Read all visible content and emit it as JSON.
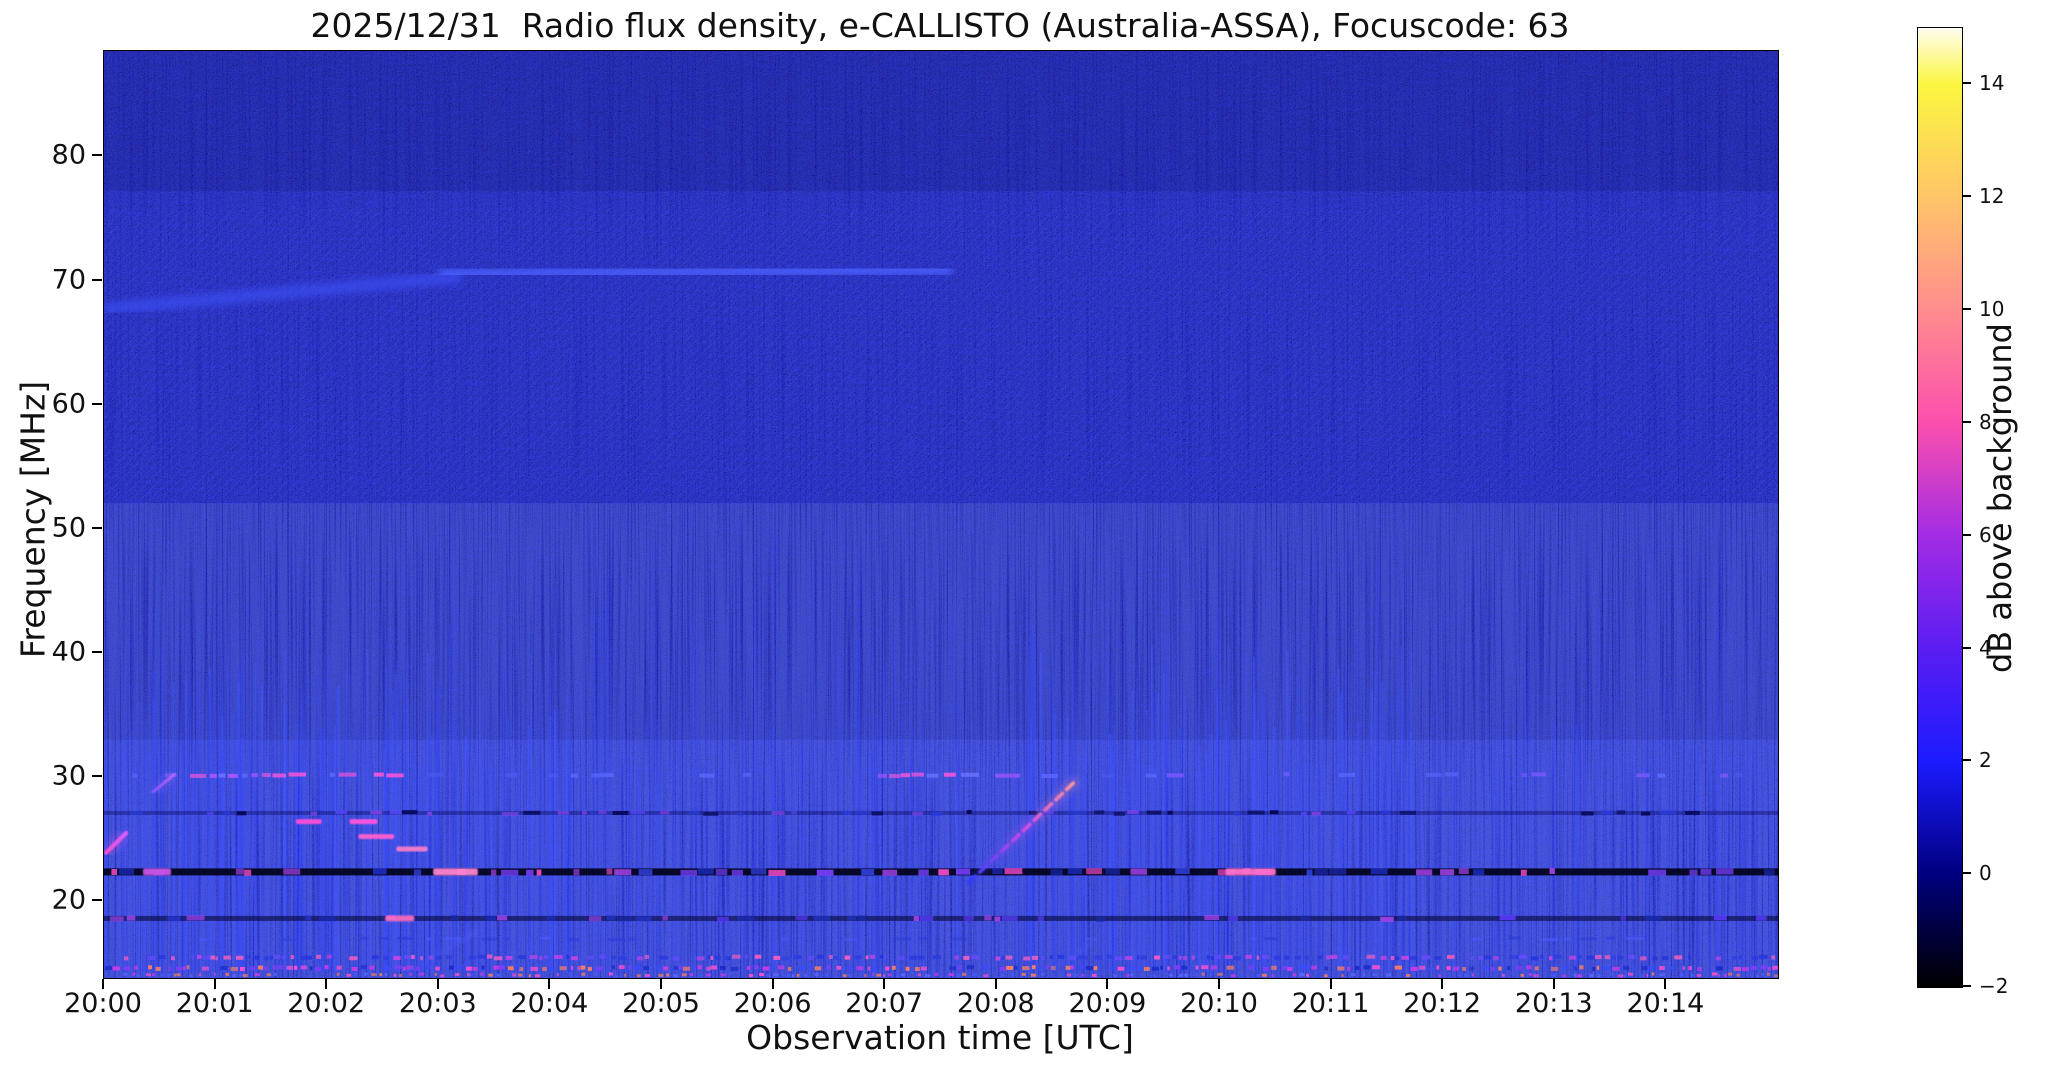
{
  "title": "2025/12/31  Radio flux density, e-CALLISTO (Australia-ASSA), Focuscode: 63",
  "chart_data": {
    "type": "heatmap",
    "subtype": "radio-spectrogram",
    "title": "2025/12/31  Radio flux density, e-CALLISTO (Australia-ASSA), Focuscode: 63",
    "xlabel": "Observation time [UTC]",
    "ylabel": "Frequency [MHz]",
    "colorbar_label": "dB above background",
    "x_tick_labels": [
      "20:00",
      "20:01",
      "20:02",
      "20:03",
      "20:04",
      "20:05",
      "20:06",
      "20:07",
      "20:08",
      "20:09",
      "20:10",
      "20:11",
      "20:12",
      "20:13",
      "20:14"
    ],
    "x_tick_minutes": [
      0,
      1,
      2,
      3,
      4,
      5,
      6,
      7,
      8,
      9,
      10,
      11,
      12,
      13,
      14
    ],
    "x_range_minutes": [
      0,
      15
    ],
    "x_start_time": "20:00",
    "y_tick_values": [
      80,
      70,
      60,
      50,
      40,
      30,
      20
    ],
    "y_range_mhz": [
      13.8,
      88.5
    ],
    "grid": false,
    "colorbar_tick_values": [
      14,
      12,
      10,
      8,
      6,
      4,
      2,
      0,
      -2
    ],
    "colorbar_tick_labels": [
      "14",
      "12",
      "10",
      "8",
      "6",
      "4",
      "2",
      "0",
      "−2"
    ],
    "colorbar_range_db": [
      -2,
      15
    ],
    "colormap_stops": [
      {
        "value": 15,
        "color": "#fffdf0"
      },
      {
        "value": 14,
        "color": "#fbf63f"
      },
      {
        "value": 12,
        "color": "#ffc568"
      },
      {
        "value": 10,
        "color": "#ff8d8d"
      },
      {
        "value": 8,
        "color": "#fb4fae"
      },
      {
        "value": 6,
        "color": "#a32ce4"
      },
      {
        "value": 4,
        "color": "#5b1df2"
      },
      {
        "value": 2,
        "color": "#1b1bff"
      },
      {
        "value": 0,
        "color": "#000080"
      },
      {
        "value": -2,
        "color": "#000000"
      }
    ],
    "background_color": "#0808ad",
    "features": {
      "horizontal_bands": [
        {
          "name": "quiet-channel-76MHz",
          "f1": 76.5,
          "f2": 76.5,
          "t1": 0,
          "t2": 8.05,
          "color": "#000050",
          "w": 3,
          "opacity": 0.8,
          "blur": "b1"
        },
        {
          "name": "active-band-76MHz",
          "f1": 76.3,
          "f2": 76.3,
          "t1": 7.95,
          "t2": 15,
          "color": "#4050ff",
          "w": 4,
          "opacity": 0.9,
          "blur": "b1",
          "dash": "7 4"
        },
        {
          "name": "active-band-76MHz-glow",
          "f1": 76.3,
          "f2": 76.3,
          "t1": 8.4,
          "t2": 13.5,
          "color": "#4e62ff",
          "w": 9,
          "opacity": 0.38,
          "blur": "b4"
        },
        {
          "name": "band-68MHz-rising",
          "f1": 67.7,
          "f2": 70.3,
          "t1": 0,
          "t2": 3.2,
          "color": "#3c50f5",
          "w": 12,
          "opacity": 0.7,
          "blur": "b4"
        },
        {
          "name": "band-70MHz-bright",
          "f1": 70.5,
          "f2": 70.9,
          "t1": 3.0,
          "t2": 7.6,
          "color": "#4c62ff",
          "w": 12,
          "opacity": 0.85,
          "blur": "b4"
        },
        {
          "name": "band-70MHz-tail",
          "f1": 70.8,
          "f2": 70.8,
          "t1": 7.6,
          "t2": 15,
          "color": "#2e3cd0",
          "w": 9,
          "opacity": 0.4,
          "blur": "b4"
        },
        {
          "name": "band-67MHz-glow",
          "f1": 68.0,
          "f2": 68.0,
          "t1": 0,
          "t2": 15,
          "color": "#2733c4",
          "w": 24,
          "opacity": 0.22,
          "blur": "b6"
        }
      ],
      "sweeps": [
        {
          "name": "drifting-sweep-2008",
          "t1": 7.75,
          "f1": 21.5,
          "t2": 8.72,
          "f2": 29.8,
          "colors": [
            "#2b3cff",
            "#cc4ae8",
            "#ff9a9a"
          ],
          "w": 3.5,
          "opacity": 1,
          "blur": "b1",
          "dash": "9 6"
        },
        {
          "name": "sweep-left-edge-2000",
          "t1": 0.02,
          "f1": 23.9,
          "t2": 0.2,
          "f2": 25.5,
          "colors": [
            "#ff4fd0",
            "#e060ff"
          ],
          "w": 4,
          "opacity": 0.95,
          "blur": "b1"
        },
        {
          "name": "sweep-2000-30MHz",
          "t1": 0.44,
          "f1": 28.8,
          "t2": 0.63,
          "f2": 30.2,
          "colors": [
            "#8a5aff",
            "#c06aff"
          ],
          "w": 3,
          "opacity": 0.9,
          "blur": "b1"
        },
        {
          "name": "faint-sweep-2003",
          "t1": 2.75,
          "f1": 14.4,
          "t2": 3.35,
          "f2": 17.6,
          "colors": [
            "#3a4af0",
            "#5a6aff"
          ],
          "w": 2.5,
          "opacity": 0.5,
          "blur": "b2"
        },
        {
          "name": "faint-sweep-2008",
          "t1": 8.5,
          "f1": 14.5,
          "t2": 8.85,
          "f2": 16.6,
          "colors": [
            "#3a4af0",
            "#5a6aff"
          ],
          "w": 2,
          "opacity": 0.45,
          "blur": "b2"
        }
      ],
      "dash_rows": [
        {
          "name": "row-30MHz",
          "f": 30.15,
          "h": 4,
          "density": 0.3,
          "palette": [
            "#5a68ff",
            "#7a58ff",
            "#4a5af0"
          ],
          "dense_zones": [
            [
              0.75,
              2.55
            ],
            [
              6.85,
              8.2
            ]
          ],
          "dense_palette": [
            "#6a76ff",
            "#b055ff",
            "#ff55dd"
          ],
          "dense_density": 0.85,
          "opacity": 0.9
        },
        {
          "name": "row-27MHz",
          "f": 27.1,
          "h": 4,
          "density": 0.52,
          "palette": [
            "#000048",
            "#2a3ae0",
            "#5a48ff",
            "#8a44ee",
            "#000048"
          ],
          "opacity": 0.85,
          "base": {
            "color": "#000050",
            "h": 4,
            "opacity": 0.35
          }
        },
        {
          "name": "row-26MHz-bursts",
          "f": 26.4,
          "h": 4,
          "density": 0,
          "palette": [
            "#ff4fd8"
          ],
          "opacity": 0.95,
          "segments": [
            [
              1.72,
              1.95,
              "#ff4fd8"
            ],
            [
              2.2,
              2.45,
              "#ff55e0"
            ]
          ]
        },
        {
          "name": "row-25MHz-bursts",
          "f": 25.2,
          "h": 4,
          "density": 0,
          "palette": [
            "#ff5fd0"
          ],
          "opacity": 0.95,
          "segments": [
            [
              2.28,
              2.6,
              "#ff5fd0"
            ]
          ]
        },
        {
          "name": "row-24MHz-bursts",
          "f": 24.2,
          "h": 4,
          "density": 0,
          "palette": [
            "#ff7fc8"
          ],
          "opacity": 0.9,
          "segments": [
            [
              2.62,
              2.9,
              "#ff7fc8"
            ]
          ]
        },
        {
          "name": "row-22MHz",
          "f": 22.35,
          "h": 6,
          "density": 0.52,
          "palette": [
            "#1a2ab8",
            "#7a40ff",
            "#ff4fd0",
            "#3040dd",
            "#aa44ee"
          ],
          "opacity": 0.95,
          "base": {
            "color": "#000016",
            "h": 7,
            "opacity": 0.9
          },
          "segments": [
            [
              0.35,
              0.6,
              "#cc55e8"
            ],
            [
              2.95,
              3.35,
              "#ff85d0"
            ],
            [
              10.05,
              10.5,
              "#ff70cc"
            ]
          ]
        },
        {
          "name": "row-18MHz",
          "f": 18.6,
          "h": 5,
          "density": 0.48,
          "palette": [
            "#2233cc",
            "#5a3aff",
            "#aa44ee",
            "#1a2ab0"
          ],
          "opacity": 0.9,
          "base": {
            "color": "#000026",
            "h": 5,
            "opacity": 0.55
          },
          "segments": [
            [
              2.52,
              2.78,
              "#ff70c8"
            ]
          ]
        },
        {
          "name": "row-17MHz",
          "f": 16.95,
          "h": 3,
          "density": 0.3,
          "palette": [
            "#2a3ad8",
            "#4a5aff"
          ],
          "opacity": 0.7
        },
        {
          "name": "row-15MHz",
          "f": 15.45,
          "h": 4,
          "density": 0.8,
          "dashlen": [
            0.02,
            0.08
          ],
          "palette": [
            "#2233dd",
            "#6a4aff",
            "#cc44e8",
            "#ff5fc0",
            "#2a3ae0"
          ],
          "opacity": 0.9
        },
        {
          "name": "row-14.6MHz",
          "f": 14.6,
          "h": 4,
          "density": 0.85,
          "dashlen": [
            0.02,
            0.07
          ],
          "palette": [
            "#1a2ac8",
            "#8a3aff",
            "#ff4fd0",
            "#ff8060",
            "#3a4aff",
            "#cc3ae8"
          ],
          "opacity": 0.95
        },
        {
          "name": "row-bottom-speckle",
          "f": 14.05,
          "h": 3,
          "density": 0.7,
          "dashlen": [
            0.015,
            0.05
          ],
          "palette": [
            "#ff50c8",
            "#ff8055",
            "#4a5aff",
            "#cc3ae8",
            "#5a6aff"
          ],
          "opacity": 0.9
        }
      ],
      "rfi_stripes": {
        "count": 520,
        "f_bottom": 14.3,
        "f_top_min": 30,
        "f_top_max": 52,
        "dense_t_zones": [
          [
            0,
            4.3
          ],
          [
            8.3,
            11.8
          ]
        ],
        "color": "#3246ff",
        "bright_count": 90,
        "bright_f_top_min": 32,
        "bright_f_top_max": 41,
        "bright_color": "#4256ff"
      },
      "hatch_zones": [
        {
          "name": "hatch-upper",
          "f_hi": 75.8,
          "f_lo": 52.5,
          "opacity": 0.35
        },
        {
          "name": "hatch-lower",
          "f_hi": 33.0,
          "f_lo": 20.5,
          "opacity": 0.4
        },
        {
          "name": "hatch-all",
          "f_hi": 88.5,
          "f_lo": 13.8,
          "opacity": 0.1
        }
      ],
      "shade_zones": [
        {
          "name": "shade-top",
          "f_hi": 88.5,
          "f_lo": 77.2,
          "color": "#000030",
          "opacity": 0.12
        },
        {
          "name": "shade-mid",
          "f_hi": 52,
          "f_lo": 33,
          "color": "#000040",
          "opacity": 0.1
        },
        {
          "name": "haze-above-30MHz",
          "f_hi": 33,
          "f_lo": 30.6,
          "t1": 0,
          "t2": 2.6,
          "color": "#3a4ae0",
          "opacity": 0.15
        }
      ]
    }
  }
}
